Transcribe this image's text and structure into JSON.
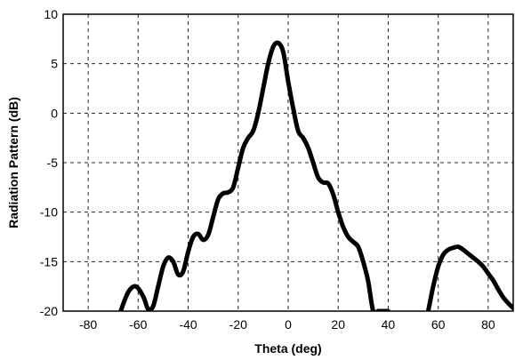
{
  "chart_data": {
    "type": "line",
    "title": "",
    "xlabel": "Theta (deg)",
    "ylabel": "Radiation Pattern (dB)",
    "xlim": [
      -90,
      90
    ],
    "ylim": [
      -20,
      10
    ],
    "grid": true,
    "x_ticks": [
      -80,
      -60,
      -40,
      -20,
      0,
      20,
      40,
      60,
      80
    ],
    "y_ticks": [
      -20,
      -15,
      -10,
      -5,
      0,
      5,
      10
    ],
    "series": [
      {
        "segments": [
          {
            "x": [
              -67,
              -64,
              -61,
              -58,
              -56,
              -54,
              -52,
              -50,
              -48,
              -46,
              -44,
              -42,
              -40,
              -38,
              -36,
              -34,
              -32,
              -30,
              -28,
              -26,
              -24,
              -22,
              -20,
              -18,
              -16,
              -14,
              -12,
              -10,
              -8,
              -6,
              -4,
              -2,
              0,
              2,
              4,
              6,
              8,
              10,
              12,
              14,
              16,
              18,
              20,
              22,
              24,
              26,
              28,
              30,
              32,
              34,
              36,
              38,
              40
            ],
            "y": [
              -20,
              -18.1,
              -17.5,
              -18.5,
              -19.8,
              -19.5,
              -17.5,
              -15.5,
              -14.6,
              -15.0,
              -16.3,
              -16.0,
              -14.0,
              -12.5,
              -12.2,
              -12.8,
              -12.3,
              -10.5,
              -8.7,
              -8.1,
              -8.0,
              -7.5,
              -5.5,
              -3.5,
              -2.5,
              -1.8,
              0.0,
              2.5,
              5.0,
              6.7,
              7.1,
              6.2,
              3.2,
              0.5,
              -1.8,
              -2.5,
              -3.5,
              -5.0,
              -6.5,
              -7.0,
              -7.1,
              -8.2,
              -10.0,
              -11.5,
              -12.5,
              -13.0,
              -13.5,
              -15.0,
              -17.0,
              -20.0,
              -20,
              -20,
              -20
            ]
          },
          {
            "x": [
              56,
              58,
              60,
              62,
              64,
              66,
              68,
              70,
              72,
              74,
              76,
              78,
              80,
              82,
              84,
              86,
              88,
              90
            ],
            "y": [
              -20,
              -17.5,
              -15.5,
              -14.3,
              -13.8,
              -13.6,
              -13.5,
              -13.8,
              -14.2,
              -14.6,
              -15.0,
              -15.5,
              -16.2,
              -16.9,
              -17.8,
              -18.6,
              -19.2,
              -19.7
            ]
          }
        ]
      }
    ]
  }
}
